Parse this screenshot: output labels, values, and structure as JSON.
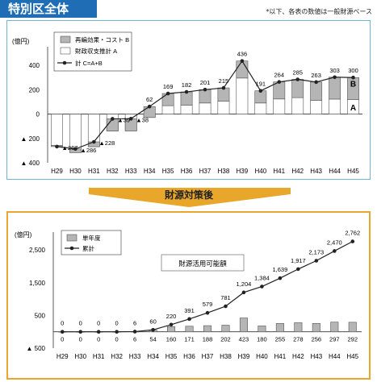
{
  "header": {
    "title": "特別区全体",
    "note": "*以下、各表の数値は一般財源ベース",
    "transition_label": "財源対策後"
  },
  "colors": {
    "header_bg": "#1f6db5",
    "panel1_border": "#6fb3d6",
    "panel2_border": "#e8a72b",
    "bar_b": "#b5b5b5",
    "bar_a": "#ffffff",
    "line": "#222222"
  },
  "chart_data": [
    {
      "type": "bar",
      "ylabel": "(億円)",
      "ylim": [
        -400,
        500
      ],
      "yticks": [
        400,
        200,
        0,
        -200,
        -400
      ],
      "ytick_labels": [
        "400",
        "200",
        "0",
        "▲ 200",
        "▲ 400"
      ],
      "categories": [
        "H29",
        "H30",
        "H31",
        "H32",
        "H33",
        "H34",
        "H35",
        "H36",
        "H37",
        "H38",
        "H39",
        "H40",
        "H41",
        "H42",
        "H43",
        "H44",
        "H45"
      ],
      "series": [
        {
          "name": "再編効果・コスト B",
          "kind": "bar",
          "values": [
            -10,
            30,
            40,
            100,
            100,
            90,
            100,
            110,
            110,
            110,
            140,
            100,
            140,
            150,
            150,
            180,
            180
          ]
        },
        {
          "name": "財政収支推計 A",
          "kind": "bar",
          "values": [
            -257,
            -316,
            -268,
            -139,
            -138,
            -28,
            69,
            72,
            91,
            105,
            296,
            91,
            124,
            135,
            113,
            123,
            120
          ]
        },
        {
          "name": "計 C=A+B",
          "kind": "line",
          "values": [
            -267,
            -286,
            -228,
            -39,
            -38,
            62,
            169,
            182,
            201,
            215,
            436,
            191,
            264,
            285,
            263,
            303,
            300
          ],
          "labels": [
            "▲267",
            "▲286",
            "▲228",
            "▲39",
            "▲38",
            "62",
            "169",
            "182",
            "201",
            "215",
            "436",
            "191",
            "264",
            "285",
            "263",
            "303",
            "300"
          ]
        }
      ],
      "annotations": [
        "B",
        "A"
      ],
      "legend": "top-left"
    },
    {
      "type": "bar",
      "ylabel": "(億円)",
      "ylim": [
        -500,
        2900
      ],
      "yticks": [
        2500,
        1500,
        500,
        -500
      ],
      "ytick_labels": [
        "2,500",
        "1,500",
        "500",
        "▲ 500"
      ],
      "categories": [
        "H29",
        "H30",
        "H31",
        "H32",
        "H33",
        "H34",
        "H35",
        "H36",
        "H37",
        "H38",
        "H39",
        "H40",
        "H41",
        "H42",
        "H43",
        "H44",
        "H45"
      ],
      "series": [
        {
          "name": "単年度",
          "kind": "bar",
          "values": [
            0,
            0,
            0,
            0,
            6,
            54,
            160,
            171,
            188,
            202,
            423,
            180,
            255,
            278,
            256,
            297,
            292
          ]
        },
        {
          "name": "累計",
          "kind": "line",
          "values": [
            0,
            0,
            0,
            0,
            6,
            60,
            220,
            391,
            579,
            781,
            1204,
            1384,
            1639,
            1917,
            2173,
            2470,
            2762
          ],
          "labels": [
            "0",
            "0",
            "0",
            "0",
            "6",
            "60",
            "220",
            "391",
            "579",
            "781",
            "1,204",
            "1,384",
            "1,639",
            "1,917",
            "2,173",
            "2,470",
            "2,762"
          ]
        }
      ],
      "annotations": [
        "財源活用可能額"
      ],
      "legend": "top-left"
    }
  ]
}
